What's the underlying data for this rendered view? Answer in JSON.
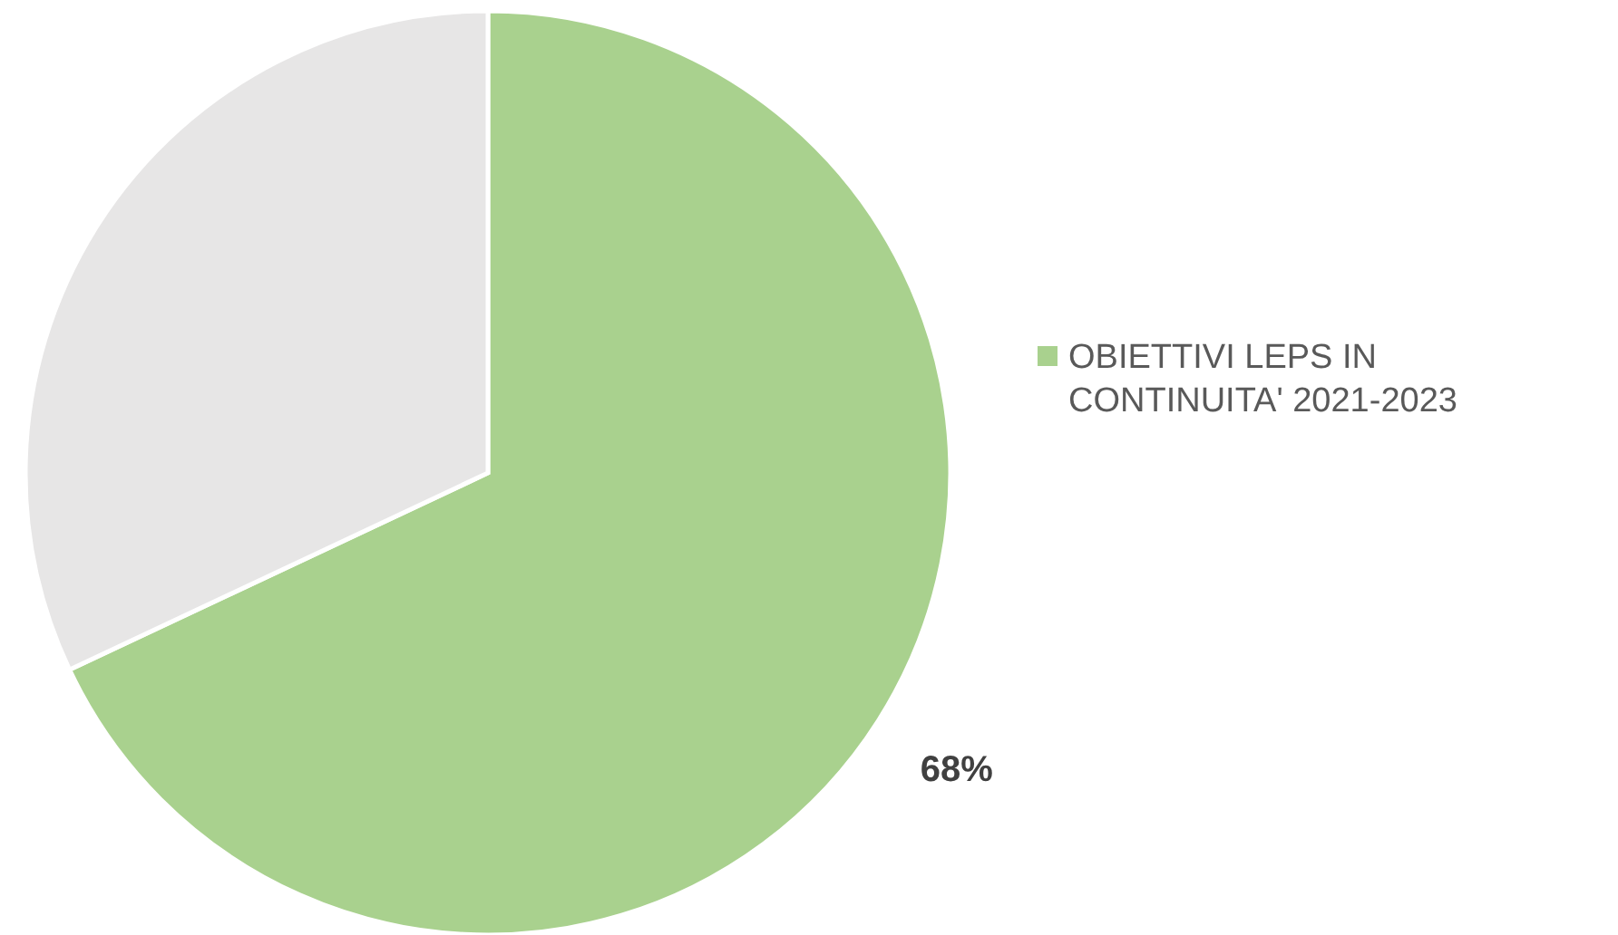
{
  "chart_data": {
    "type": "pie",
    "categories": [
      "OBIETTIVI LEPS IN CONTINUITA' 2021-2023",
      null
    ],
    "values": [
      68,
      32
    ],
    "colors": [
      "#a9d18e",
      "#e7e6e6"
    ],
    "value_labels": [
      "68%",
      null
    ],
    "legend": "right"
  }
}
